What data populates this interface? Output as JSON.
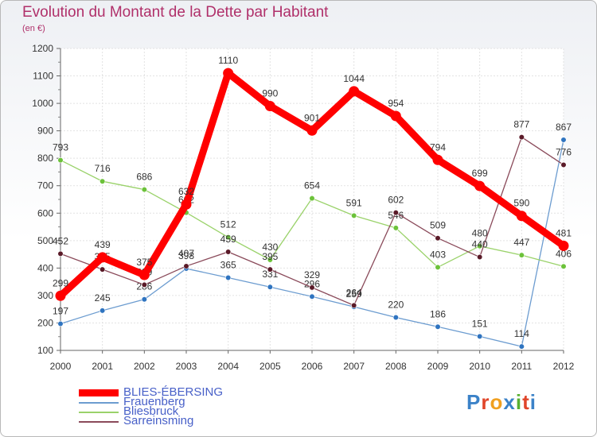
{
  "title": "Evolution du Montant de la Dette par Habitant",
  "unit": "(en €)",
  "logo": {
    "text": "Proxiti",
    "letter_colors": [
      "#3b82c8",
      "#e0452a",
      "#f0a020",
      "#3b82c8",
      "#58b030",
      "#e0452a",
      "#3b82c8"
    ]
  },
  "chart_data": {
    "type": "line",
    "x": [
      "2000",
      "2001",
      "2002",
      "2003",
      "2004",
      "2005",
      "2006",
      "2007",
      "2008",
      "2009",
      "2010",
      "2011",
      "2012"
    ],
    "ylim": [
      100,
      1200
    ],
    "yticks": [
      100,
      200,
      300,
      400,
      500,
      600,
      700,
      800,
      900,
      1000,
      1100,
      1200
    ],
    "grid": true,
    "legend_position": "bottom-left",
    "series": [
      {
        "name": "Frauenberg",
        "color": "#6c9cd0",
        "marker_color": "#2f74c0",
        "values": [
          197,
          245,
          286,
          398,
          365,
          331,
          296,
          259,
          220,
          186,
          151,
          114,
          867
        ],
        "labels": [
          "197",
          "245",
          "286",
          "398",
          "365",
          "331",
          "296",
          "259",
          "220",
          "186",
          "151",
          "114",
          "867"
        ]
      },
      {
        "name": "Bliesbruck",
        "color": "#9ad26a",
        "marker_color": "#6cc23a",
        "values": [
          793,
          716,
          686,
          602,
          512,
          430,
          654,
          591,
          546,
          403,
          480,
          447,
          406
        ],
        "labels": [
          "793",
          "716",
          "686",
          "602",
          "512",
          "430",
          "654",
          "591",
          "546",
          "403",
          "480",
          "447",
          "406"
        ]
      },
      {
        "name": "Sarreinsming",
        "color": "#8a4a5a",
        "marker_color": "#5a1a28",
        "values": [
          452,
          395,
          339,
          407,
          459,
          395,
          329,
          264,
          602,
          509,
          440,
          877,
          776
        ],
        "labels": [
          "452",
          "395",
          "339",
          "407",
          "459",
          "395",
          "329",
          "264",
          "602",
          "509",
          "440",
          "877",
          "776"
        ]
      },
      {
        "name": "BLIES-ÉBERSING",
        "color": "#ff0000",
        "marker_color": "#ff0000",
        "values": [
          299,
          439,
          375,
          632,
          1110,
          990,
          901,
          1044,
          954,
          794,
          699,
          590,
          481
        ],
        "labels": [
          "299",
          "439",
          "375",
          "632",
          "1110",
          "990",
          "901",
          "1044",
          "954",
          "794",
          "699",
          "590",
          "481"
        ]
      }
    ]
  },
  "legend_order": [
    "BLIES-ÉBERSING",
    "Frauenberg",
    "Bliesbruck",
    "Sarreinsming"
  ]
}
